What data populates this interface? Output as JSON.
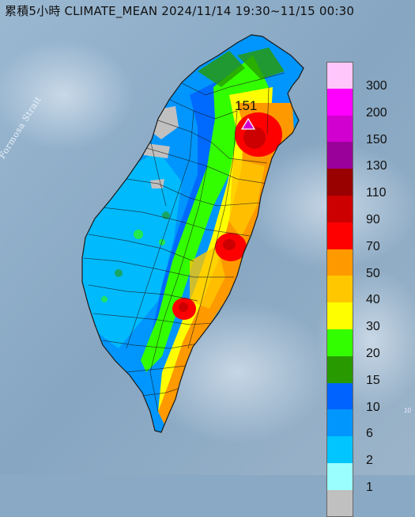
{
  "title": "累積5小時 CLIMATE_MEAN 2024/11/14 19:30~11/15 00:30",
  "sea_label": "Formosa Strait",
  "max_label": "151",
  "edge_mark": "10",
  "colors": {
    "sea": "#8aa9c4",
    "land_outline": "#1a1a1a"
  },
  "legend": [
    {
      "label": "300",
      "color": "#ffc6fb"
    },
    {
      "label": "200",
      "color": "#fe00fe"
    },
    {
      "label": "150",
      "color": "#d100d1"
    },
    {
      "label": "130",
      "color": "#9a009a"
    },
    {
      "label": "110",
      "color": "#990000"
    },
    {
      "label": "90",
      "color": "#cc0000"
    },
    {
      "label": "70",
      "color": "#fe0000"
    },
    {
      "label": "50",
      "color": "#fe9900"
    },
    {
      "label": "40",
      "color": "#ffc700"
    },
    {
      "label": "30",
      "color": "#fefe00"
    },
    {
      "label": "20",
      "color": "#33fe00"
    },
    {
      "label": "15",
      "color": "#289a00"
    },
    {
      "label": "10",
      "color": "#0063fe"
    },
    {
      "label": "6",
      "color": "#0096fe"
    },
    {
      "label": "2",
      "color": "#00c5fe"
    },
    {
      "label": "1",
      "color": "#9afefe"
    },
    {
      "label": "",
      "color": "#c0c0c0"
    }
  ]
}
